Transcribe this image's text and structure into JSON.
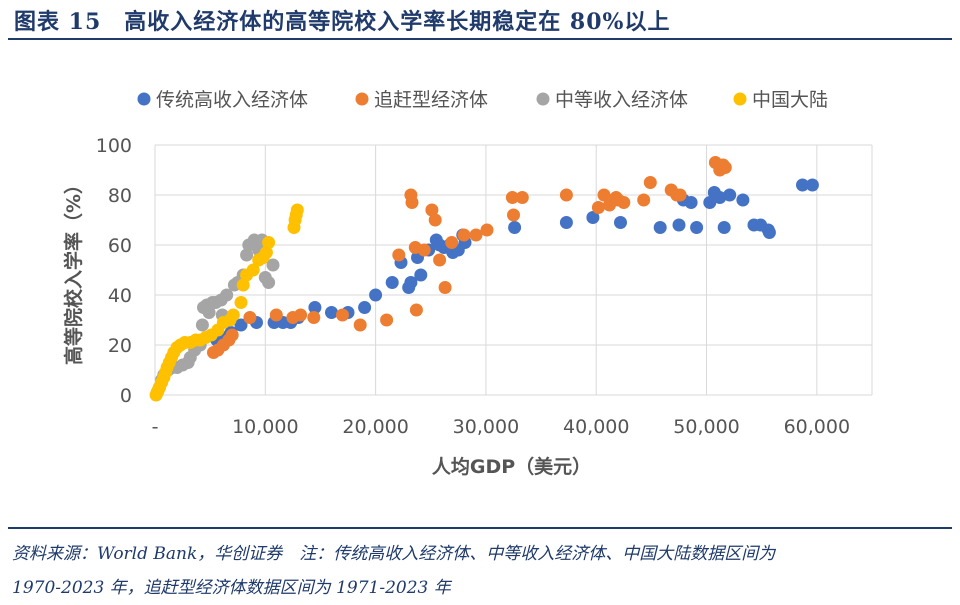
{
  "header": {
    "title": "图表 15　高收入经济体的高等院校入学率长期稳定在 80%以上"
  },
  "footer": {
    "source_line1": "资料来源：World Bank，华创证券　注：传统高收入经济体、中等收入经济体、中国大陆数据区间为",
    "source_line2": "1970-2023 年，追赶型经济体数据区间为 1971-2023 年"
  },
  "chart_data": {
    "type": "scatter",
    "title": "",
    "xlabel": "人均GDP（美元）",
    "ylabel": "高等院校入学率（%）",
    "xlim": [
      0,
      65000
    ],
    "ylim": [
      0,
      100
    ],
    "x_ticks": [
      0,
      10000,
      20000,
      30000,
      40000,
      50000,
      60000
    ],
    "x_tick_labels": [
      "-",
      "10,000",
      "20,000",
      "30,000",
      "40,000",
      "50,000",
      "60,000"
    ],
    "y_ticks": [
      0,
      20,
      40,
      60,
      80,
      100
    ],
    "y_tick_labels": [
      "0",
      "20",
      "40",
      "60",
      "80",
      "100"
    ],
    "grid": "both",
    "legend": "top",
    "series": [
      {
        "name": "传统高收入经济体",
        "color": "#4472c4",
        "points": [
          [
            5600,
            22
          ],
          [
            6200,
            23
          ],
          [
            6900,
            25
          ],
          [
            7800,
            28
          ],
          [
            9200,
            29
          ],
          [
            10800,
            29
          ],
          [
            11600,
            29
          ],
          [
            12300,
            29
          ],
          [
            13000,
            31
          ],
          [
            14500,
            35
          ],
          [
            16000,
            33
          ],
          [
            17500,
            33
          ],
          [
            19000,
            35
          ],
          [
            20000,
            40
          ],
          [
            21500,
            45
          ],
          [
            22300,
            53
          ],
          [
            23000,
            43
          ],
          [
            23200,
            45
          ],
          [
            23800,
            55
          ],
          [
            24100,
            48
          ],
          [
            24800,
            58
          ],
          [
            25500,
            62
          ],
          [
            25800,
            60
          ],
          [
            26200,
            59
          ],
          [
            26700,
            60
          ],
          [
            27000,
            57
          ],
          [
            27500,
            58
          ],
          [
            27900,
            64
          ],
          [
            28100,
            61
          ],
          [
            32600,
            67
          ],
          [
            37300,
            69
          ],
          [
            39700,
            71
          ],
          [
            42200,
            69
          ],
          [
            45800,
            67
          ],
          [
            47500,
            68
          ],
          [
            47900,
            78
          ],
          [
            48600,
            77
          ],
          [
            49100,
            67
          ],
          [
            50300,
            77
          ],
          [
            50700,
            81
          ],
          [
            51200,
            79
          ],
          [
            51600,
            67
          ],
          [
            52100,
            80
          ],
          [
            53300,
            78
          ],
          [
            54300,
            68
          ],
          [
            54900,
            68
          ],
          [
            55600,
            66
          ],
          [
            55700,
            65
          ],
          [
            58700,
            84
          ],
          [
            59600,
            84
          ]
        ]
      },
      {
        "name": "追赶型经济体",
        "color": "#ed7d31",
        "points": [
          [
            5300,
            17
          ],
          [
            5700,
            18
          ],
          [
            6200,
            20
          ],
          [
            6700,
            22
          ],
          [
            7000,
            24
          ],
          [
            8600,
            31
          ],
          [
            11000,
            32
          ],
          [
            12500,
            31
          ],
          [
            13200,
            32
          ],
          [
            14400,
            31
          ],
          [
            17000,
            32
          ],
          [
            18600,
            28
          ],
          [
            21000,
            30
          ],
          [
            22100,
            56
          ],
          [
            23200,
            80
          ],
          [
            23300,
            77
          ],
          [
            23600,
            59
          ],
          [
            23700,
            34
          ],
          [
            24400,
            58
          ],
          [
            25100,
            74
          ],
          [
            25400,
            70
          ],
          [
            25800,
            54
          ],
          [
            26300,
            43
          ],
          [
            26900,
            61
          ],
          [
            28000,
            64
          ],
          [
            29100,
            64
          ],
          [
            30100,
            66
          ],
          [
            32400,
            79
          ],
          [
            32500,
            72
          ],
          [
            33300,
            79
          ],
          [
            37300,
            80
          ],
          [
            40200,
            75
          ],
          [
            40700,
            80
          ],
          [
            41200,
            76
          ],
          [
            41800,
            79
          ],
          [
            42000,
            78
          ],
          [
            42500,
            77
          ],
          [
            44300,
            78
          ],
          [
            44900,
            85
          ],
          [
            46800,
            82
          ],
          [
            47300,
            80
          ],
          [
            47600,
            80
          ],
          [
            50800,
            93
          ],
          [
            51200,
            90
          ],
          [
            51500,
            92
          ],
          [
            51700,
            91
          ]
        ]
      },
      {
        "name": "中等收入经济体",
        "color": "#a5a5a5",
        "points": [
          [
            200,
            1
          ],
          [
            400,
            3
          ],
          [
            600,
            6
          ],
          [
            800,
            8
          ],
          [
            1200,
            10
          ],
          [
            1600,
            11
          ],
          [
            2000,
            11
          ],
          [
            2500,
            12
          ],
          [
            3000,
            13
          ],
          [
            3200,
            15
          ],
          [
            3600,
            18
          ],
          [
            4100,
            20
          ],
          [
            4300,
            28
          ],
          [
            4400,
            35
          ],
          [
            4700,
            36
          ],
          [
            5200,
            37
          ],
          [
            5500,
            37
          ],
          [
            6000,
            38
          ],
          [
            6500,
            40
          ],
          [
            7200,
            44
          ],
          [
            8000,
            48
          ],
          [
            8300,
            56
          ],
          [
            8500,
            60
          ],
          [
            9000,
            62
          ],
          [
            9400,
            58
          ],
          [
            9700,
            62
          ],
          [
            9800,
            55
          ],
          [
            10000,
            47
          ],
          [
            10300,
            45
          ],
          [
            10700,
            52
          ],
          [
            6100,
            32
          ],
          [
            7500,
            45
          ],
          [
            4900,
            33
          ]
        ]
      },
      {
        "name": "中国大陆",
        "color": "#ffc000",
        "points": [
          [
            100,
            0
          ],
          [
            200,
            1
          ],
          [
            300,
            2
          ],
          [
            400,
            3
          ],
          [
            600,
            5
          ],
          [
            800,
            7
          ],
          [
            950,
            9
          ],
          [
            1100,
            11
          ],
          [
            1300,
            13
          ],
          [
            1500,
            15
          ],
          [
            1700,
            17
          ],
          [
            2000,
            19
          ],
          [
            2300,
            20
          ],
          [
            2700,
            21
          ],
          [
            3200,
            21
          ],
          [
            3700,
            22
          ],
          [
            4100,
            22
          ],
          [
            4600,
            23
          ],
          [
            5100,
            24
          ],
          [
            5700,
            26
          ],
          [
            6200,
            29
          ],
          [
            6800,
            30
          ],
          [
            7100,
            32
          ],
          [
            7800,
            37
          ],
          [
            8000,
            44
          ],
          [
            8300,
            48
          ],
          [
            8900,
            50
          ],
          [
            9400,
            54
          ],
          [
            9800,
            55
          ],
          [
            10100,
            57
          ],
          [
            10300,
            61
          ],
          [
            12600,
            67
          ],
          [
            12700,
            70
          ],
          [
            12800,
            72
          ],
          [
            12900,
            74
          ]
        ]
      }
    ]
  }
}
